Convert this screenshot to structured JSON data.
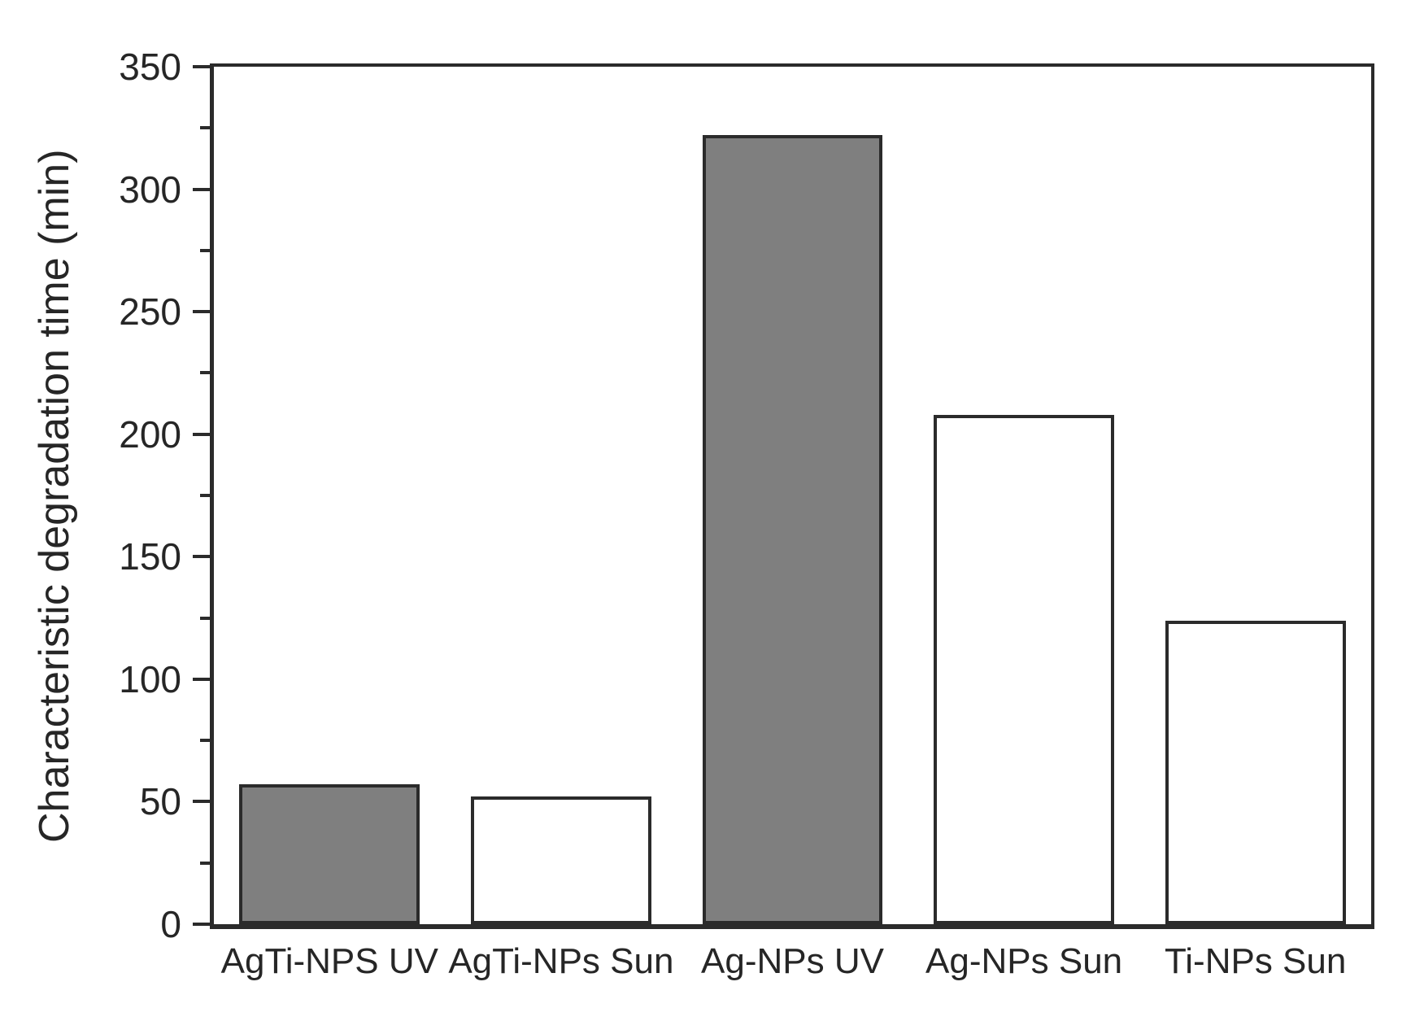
{
  "figure": {
    "background_color": "#ffffff",
    "axis_color": "#2b2b2b",
    "text_color": "#262626",
    "bar_fill_gray": "#7f7f7f",
    "bar_fill_white": "#ffffff"
  },
  "chart_data": {
    "type": "bar",
    "title": "",
    "xlabel": "",
    "ylabel": "Characteristic degradation time (min)",
    "categories": [
      "AgTi-NPS UV",
      "AgTi-NPs Sun",
      "Ag-NPs UV",
      "Ag-NPs Sun",
      "Ti-NPs Sun"
    ],
    "values": [
      57,
      52,
      322,
      208,
      124
    ],
    "bar_fills": [
      "#7f7f7f",
      "#ffffff",
      "#7f7f7f",
      "#ffffff",
      "#ffffff"
    ],
    "ylim": [
      0,
      350
    ],
    "y_major_ticks": [
      0,
      50,
      100,
      150,
      200,
      250,
      300,
      350
    ],
    "y_minor_ticks": [
      25,
      75,
      125,
      175,
      225,
      275,
      325
    ],
    "grid": false,
    "legend": "none",
    "frame": "full-box",
    "tick_direction": "out"
  }
}
